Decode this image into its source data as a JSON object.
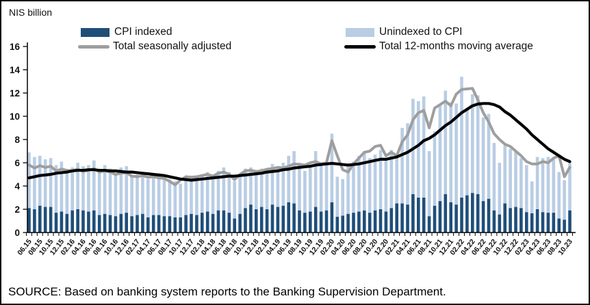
{
  "title": "NIS billion",
  "source": "SOURCE: Based on banking system reports to the Banking Supervision Department.",
  "chart_data": {
    "type": "bar",
    "subtype": "stacked-bars-with-lines",
    "title": "NIS billion",
    "ylabel": "NIS billion",
    "xlabel": "",
    "ylim": [
      0,
      16
    ],
    "ytick_step": 2,
    "xtick_label_every": 2,
    "grid": false,
    "legend_position": "top",
    "categories": [
      "06.15",
      "07.15",
      "08.15",
      "09.15",
      "10.15",
      "11.15",
      "12.15",
      "01.16",
      "02.16",
      "03.16",
      "04.16",
      "05.16",
      "06.16",
      "07.16",
      "08.16",
      "09.16",
      "10.16",
      "11.16",
      "12.16",
      "01.17",
      "02.17",
      "03.17",
      "04.17",
      "05.17",
      "06.17",
      "07.17",
      "08.17",
      "09.17",
      "10.17",
      "11.17",
      "12.17",
      "01.18",
      "02.18",
      "03.18",
      "04.18",
      "05.18",
      "06.18",
      "07.18",
      "08.18",
      "09.18",
      "10.18",
      "11.18",
      "12.18",
      "01.19",
      "02.19",
      "03.19",
      "04.19",
      "05.19",
      "06.19",
      "07.19",
      "08.19",
      "09.19",
      "10.19",
      "11.19",
      "12.19",
      "01.20",
      "02.20",
      "03.20",
      "04.20",
      "05.20",
      "06.20",
      "07.20",
      "08.20",
      "09.20",
      "10.20",
      "11.20",
      "12.20",
      "01.21",
      "02.21",
      "03.21",
      "04.21",
      "05.21",
      "06.21",
      "07.21",
      "08.21",
      "09.21",
      "10.21",
      "11.21",
      "12.21",
      "01.22",
      "02.22",
      "03.22",
      "04.22",
      "05.22",
      "06.22",
      "07.22",
      "08.22",
      "09.22",
      "10.22",
      "11.22",
      "12.22",
      "01.23",
      "02.23",
      "03.23",
      "04.23",
      "05.23",
      "06.23",
      "07.23",
      "08.23",
      "09.23",
      "10.23"
    ],
    "bar_series": [
      {
        "name": "CPI indexed",
        "color": "#1F4E79",
        "stacked": true,
        "values": [
          2.1,
          2.0,
          2.3,
          2.2,
          2.2,
          1.7,
          1.8,
          1.6,
          1.9,
          2.0,
          1.9,
          1.8,
          1.9,
          1.5,
          1.6,
          1.5,
          1.4,
          1.6,
          1.7,
          1.4,
          1.5,
          1.6,
          1.3,
          1.5,
          1.5,
          1.4,
          1.4,
          1.3,
          1.3,
          1.5,
          1.6,
          1.5,
          1.7,
          1.8,
          1.6,
          1.9,
          1.9,
          1.7,
          1.2,
          1.6,
          2.1,
          2.4,
          2.0,
          2.2,
          2.0,
          2.4,
          2.2,
          2.3,
          2.6,
          2.5,
          1.9,
          1.7,
          1.8,
          2.2,
          1.8,
          1.9,
          2.6,
          1.35,
          1.45,
          1.6,
          1.7,
          1.8,
          1.9,
          1.7,
          1.9,
          2.0,
          1.8,
          2.1,
          2.5,
          2.5,
          2.4,
          3.3,
          3.0,
          3.0,
          1.4,
          2.3,
          2.7,
          3.3,
          2.6,
          2.4,
          3.0,
          3.2,
          3.4,
          3.3,
          2.7,
          2.9,
          1.9,
          1.55,
          2.5,
          2.1,
          2.2,
          2.1,
          1.75,
          1.65,
          2.0,
          1.75,
          1.7,
          1.7,
          1.2,
          1.1,
          1.9
        ]
      },
      {
        "name": "Unindexed to CPI",
        "color": "#B9CDE4",
        "stacked": true,
        "values": [
          4.8,
          4.5,
          4.3,
          4.1,
          4.2,
          4.1,
          4.3,
          3.7,
          3.7,
          4.0,
          3.8,
          4.0,
          4.3,
          3.8,
          4.2,
          4.0,
          3.7,
          4.0,
          4.0,
          3.5,
          3.5,
          3.6,
          3.3,
          3.5,
          3.6,
          3.4,
          3.2,
          3.1,
          2.9,
          3.2,
          3.3,
          3.2,
          3.2,
          3.4,
          3.3,
          3.4,
          3.7,
          3.5,
          3.2,
          3.4,
          3.4,
          3.2,
          3.3,
          3.3,
          3.4,
          3.5,
          3.5,
          3.7,
          4.0,
          4.5,
          4.1,
          3.6,
          3.8,
          4.8,
          4.2,
          4.1,
          5.9,
          3.45,
          3.15,
          4.3,
          4.4,
          4.8,
          5.1,
          4.7,
          4.8,
          5.1,
          4.5,
          5.0,
          3.9,
          6.5,
          7.0,
          8.2,
          8.3,
          8.7,
          5.6,
          6.4,
          8.3,
          8.9,
          8.6,
          8.7,
          10.4,
          7.4,
          8.5,
          8.5,
          7.2,
          7.3,
          5.8,
          4.45,
          5.0,
          5.1,
          4.8,
          4.3,
          4.05,
          2.75,
          4.5,
          4.65,
          4.8,
          4.6,
          4.0,
          3.4,
          4.1
        ]
      }
    ],
    "line_series": [
      {
        "name": "Total seasonally adjusted",
        "color": "#9E9E9E",
        "width": 4,
        "values": [
          5.8,
          5.55,
          5.75,
          5.6,
          5.7,
          5.3,
          5.45,
          5.35,
          5.3,
          5.45,
          5.25,
          5.35,
          5.5,
          5.2,
          5.3,
          5.2,
          5.0,
          5.1,
          5.15,
          4.85,
          4.8,
          4.9,
          4.75,
          4.8,
          4.7,
          4.65,
          4.4,
          4.1,
          4.5,
          4.8,
          4.75,
          4.8,
          4.9,
          5.0,
          4.85,
          5.1,
          5.2,
          5.0,
          4.55,
          5.0,
          5.3,
          5.35,
          5.25,
          5.3,
          5.45,
          5.5,
          5.6,
          5.55,
          5.7,
          5.9,
          5.85,
          5.8,
          6.0,
          6.1,
          5.9,
          6.0,
          7.9,
          6.6,
          5.4,
          5.2,
          5.9,
          6.4,
          6.9,
          7.0,
          7.4,
          7.5,
          6.6,
          6.9,
          6.6,
          7.8,
          8.4,
          9.7,
          10.3,
          10.5,
          9.0,
          10.7,
          11.0,
          11.3,
          10.9,
          11.9,
          12.3,
          12.35,
          12.4,
          11.4,
          10.3,
          9.5,
          8.5,
          8.0,
          7.6,
          7.4,
          7.0,
          6.6,
          6.1,
          5.9,
          5.9,
          6.1,
          6.0,
          6.4,
          6.6,
          4.8,
          5.6
        ]
      },
      {
        "name": "Total 12-months moving average",
        "color": "#000000",
        "width": 4.2,
        "values": [
          4.7,
          4.8,
          4.9,
          4.95,
          5.0,
          5.1,
          5.15,
          5.2,
          5.3,
          5.35,
          5.35,
          5.4,
          5.4,
          5.35,
          5.35,
          5.3,
          5.3,
          5.25,
          5.2,
          5.2,
          5.15,
          5.1,
          5.05,
          5.0,
          4.95,
          4.9,
          4.8,
          4.7,
          4.6,
          4.55,
          4.5,
          4.55,
          4.6,
          4.65,
          4.7,
          4.75,
          4.8,
          4.85,
          4.85,
          4.9,
          4.95,
          5.0,
          5.05,
          5.1,
          5.2,
          5.25,
          5.3,
          5.4,
          5.45,
          5.55,
          5.6,
          5.65,
          5.7,
          5.8,
          5.85,
          5.9,
          5.95,
          5.9,
          5.85,
          5.8,
          5.85,
          5.9,
          6.0,
          6.1,
          6.2,
          6.3,
          6.3,
          6.4,
          6.5,
          6.7,
          6.9,
          7.2,
          7.5,
          7.9,
          8.1,
          8.4,
          8.8,
          9.2,
          9.5,
          9.9,
          10.3,
          10.6,
          10.9,
          11.05,
          11.1,
          11.1,
          11.0,
          10.8,
          10.4,
          10.1,
          9.7,
          9.3,
          8.9,
          8.4,
          8.0,
          7.6,
          7.2,
          6.9,
          6.6,
          6.3,
          6.1
        ]
      }
    ]
  }
}
